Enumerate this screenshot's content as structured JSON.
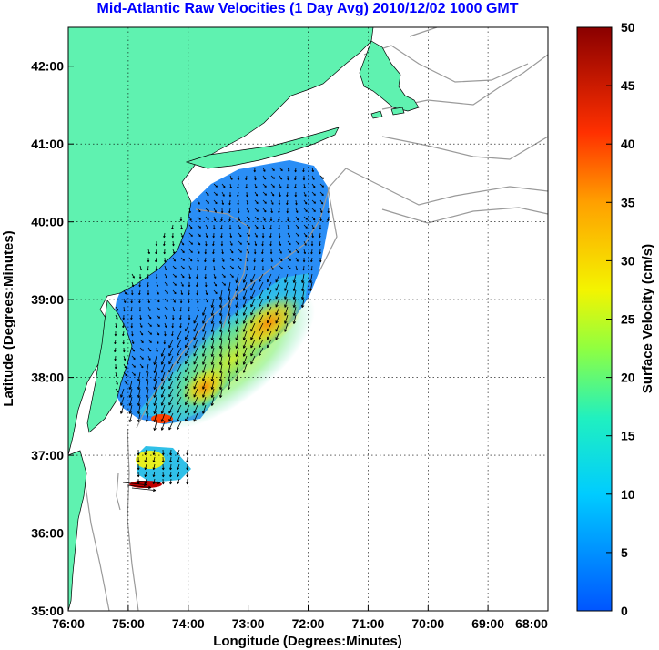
{
  "title": "Mid-Atlantic Raw Velocities (1 Day Avg) 2010/12/02 1000 GMT",
  "map": {
    "xlabel": "Longitude (Degrees:Minutes)",
    "ylabel": "Latitude (Degrees:Minutes)",
    "x_ticks": [
      "76:00",
      "75:00",
      "74:00",
      "73:00",
      "72:00",
      "71:00",
      "70:00",
      "69:00",
      "68:00"
    ],
    "y_ticks": [
      "42:00",
      "41:00",
      "40:00",
      "39:00",
      "38:00",
      "37:00",
      "36:00",
      "35:00"
    ],
    "lon_range": [
      -76,
      -68
    ],
    "lat_range": [
      35,
      42.5
    ],
    "grid": true,
    "land_color": "#5ff2b0",
    "bathymetry_color": "#9a9a9a",
    "vector_color": "#000000"
  },
  "colorbar": {
    "label": "Surface Velocity (cm/s)",
    "ticks": [
      "50",
      "45",
      "40",
      "35",
      "30",
      "25",
      "20",
      "15",
      "10",
      "5",
      "0"
    ],
    "range": [
      0,
      50
    ]
  }
}
